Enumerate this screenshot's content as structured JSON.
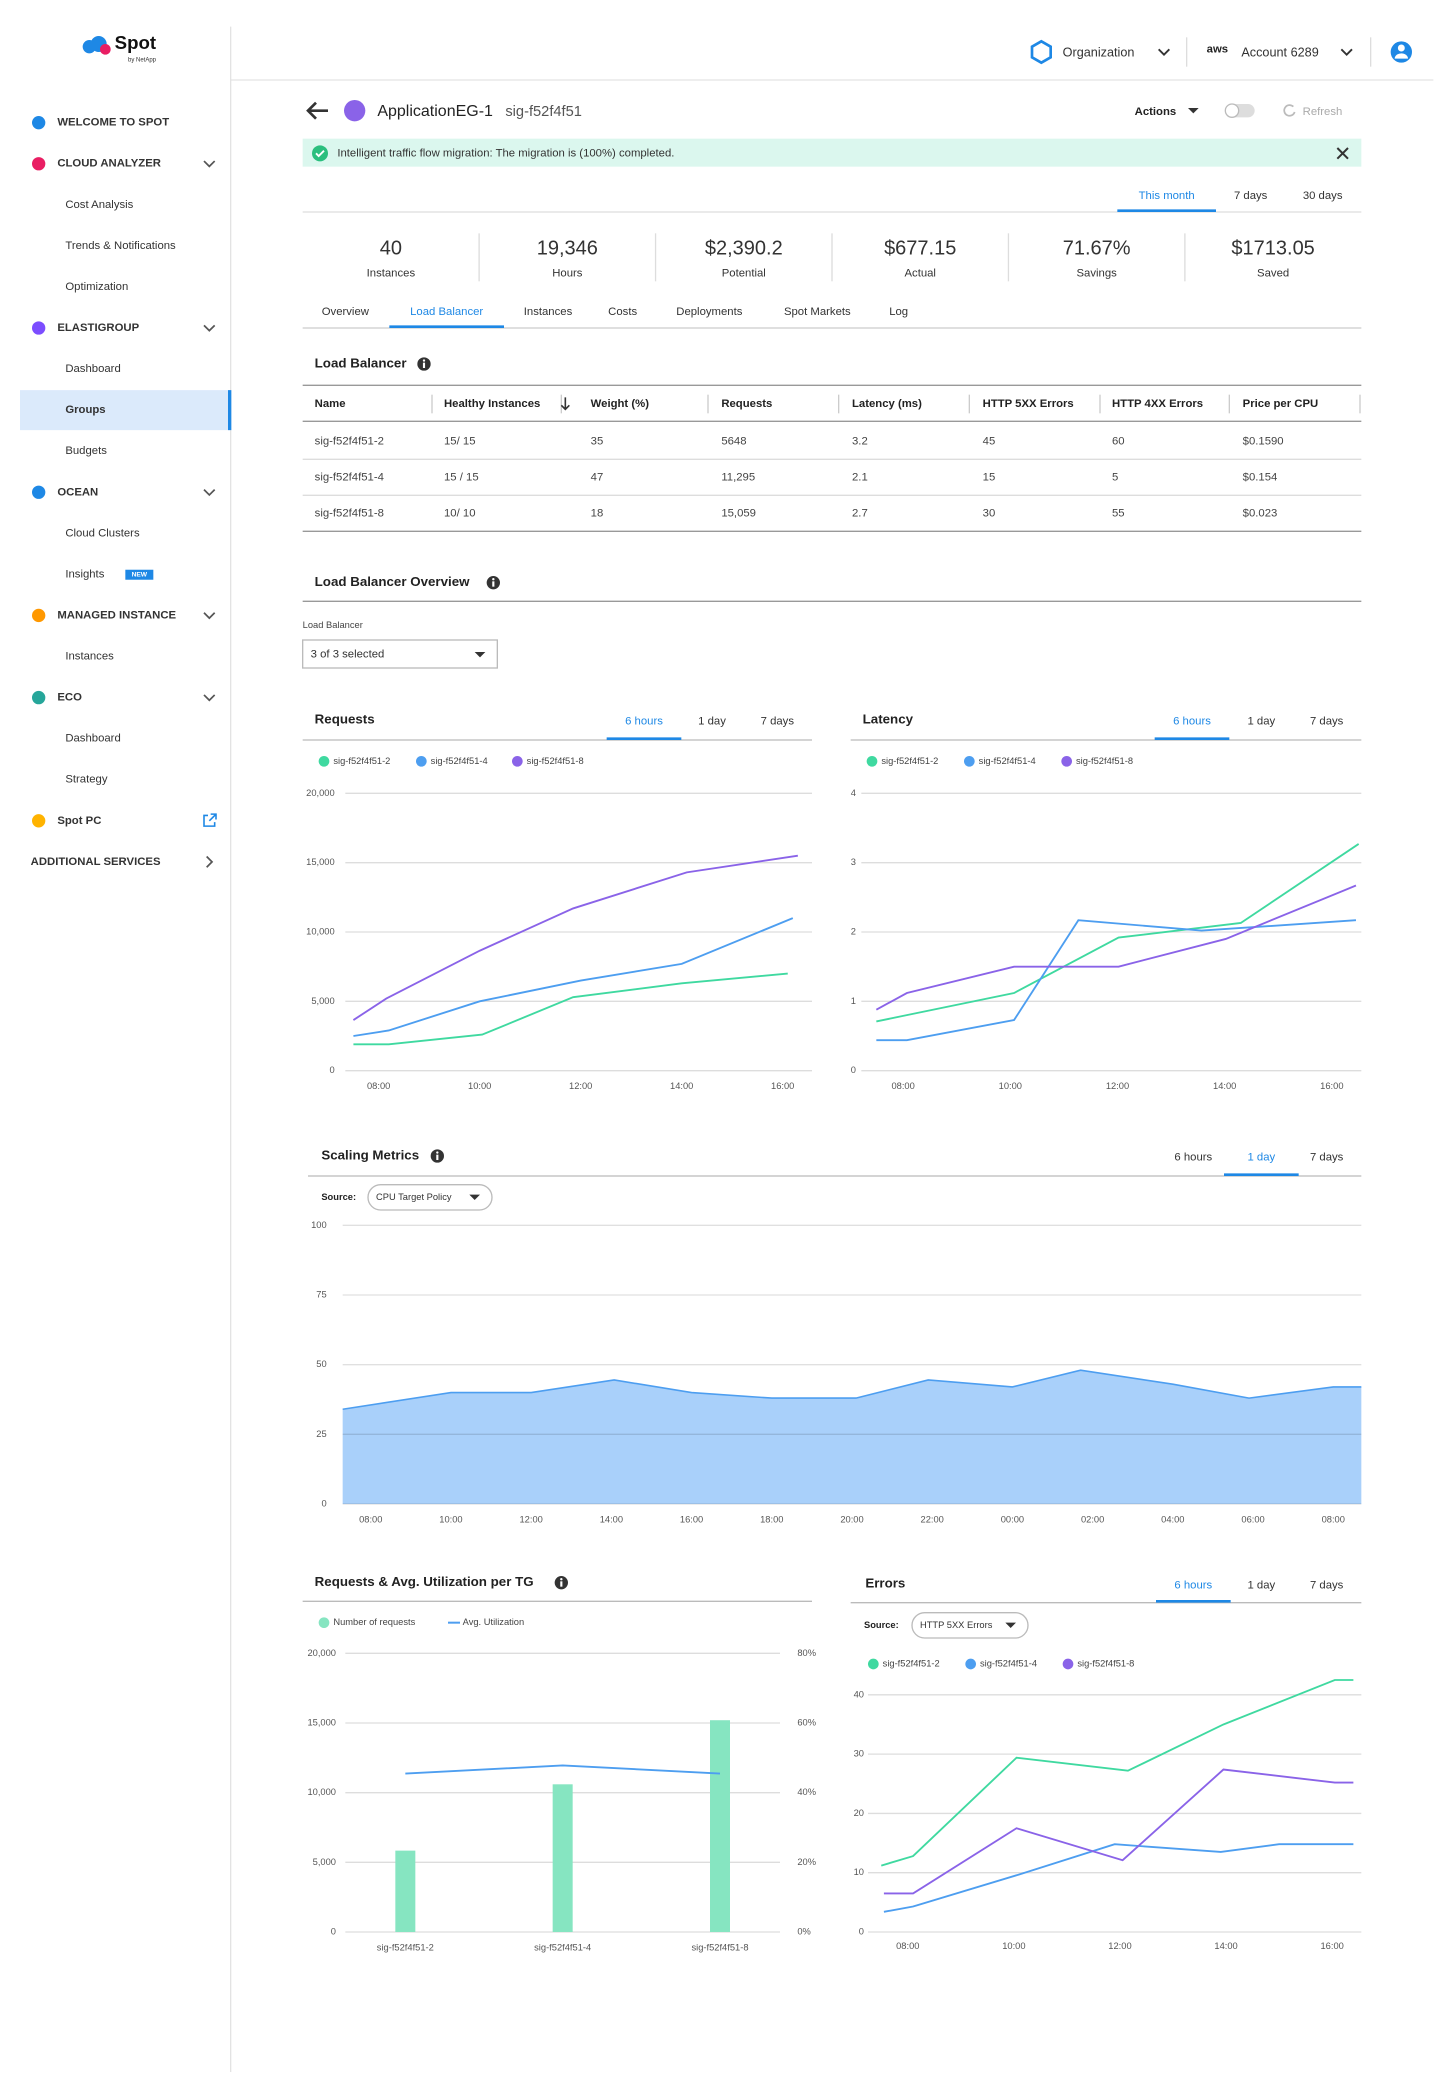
{
  "sidebar": {
    "logo": "Spot",
    "logo_sub": "by NetApp",
    "sections": [
      {
        "label": "WELCOME TO SPOT"
      },
      {
        "label": "CLOUD ANALYZER",
        "items": [
          {
            "label": "Cost Analysis"
          },
          {
            "label": "Trends & Notifications"
          },
          {
            "label": "Optimization"
          }
        ]
      },
      {
        "label": "ELASTIGROUP",
        "items": [
          {
            "label": "Dashboard"
          },
          {
            "label": "Groups",
            "active": true
          },
          {
            "label": "Budgets"
          }
        ]
      },
      {
        "label": "OCEAN",
        "items": [
          {
            "label": "Cloud Clusters"
          },
          {
            "label": "Insights",
            "badge": "NEW"
          }
        ]
      },
      {
        "label": "MANAGED INSTANCE",
        "items": [
          {
            "label": "Instances"
          }
        ]
      },
      {
        "label": "ECO",
        "items": [
          {
            "label": "Dashboard"
          },
          {
            "label": "Strategy"
          }
        ]
      },
      {
        "label": "Spot PC",
        "external": true
      },
      {
        "label": "ADDITIONAL SERVICES",
        "more": true
      }
    ]
  },
  "topbar": {
    "organization": "Organization",
    "aws": "aws",
    "account": "Account 6289"
  },
  "header": {
    "app": "ApplicationEG-1",
    "group_id": "sig-f52f4f51",
    "actions": "Actions",
    "refresh": "Refresh"
  },
  "banner": {
    "message": "Intelligent traffic flow migration: The migration is (100%) completed."
  },
  "periods": {
    "options": [
      "This month",
      "7 days",
      "30 days"
    ],
    "active": 0
  },
  "stats": [
    {
      "value": "40",
      "label": "Instances"
    },
    {
      "value": "19,346",
      "label": "Hours"
    },
    {
      "value": "$2,390.2",
      "label": "Potential"
    },
    {
      "value": "$677.15",
      "label": "Actual"
    },
    {
      "value": "71.67%",
      "label": "Savings"
    },
    {
      "value": "$1713.05",
      "label": "Saved"
    }
  ],
  "tabs": {
    "options": [
      "Overview",
      "Load Balancer",
      "Instances",
      "Costs",
      "Deployments",
      "Spot Markets",
      "Log"
    ],
    "active": 1
  },
  "load_balancer": {
    "title": "Load Balancer",
    "columns": [
      "Name",
      "Healthy Instances",
      "Weight (%)",
      "Requests",
      "Latency (ms)",
      "HTTP 5XX Errors",
      "HTTP 4XX Errors",
      "Price per CPU"
    ],
    "rows": [
      [
        "sig-f52f4f51-2",
        "15/ 15",
        "35",
        "5648",
        "3.2",
        "45",
        "60",
        "$0.1590"
      ],
      [
        "sig-f52f4f51-4",
        "15 / 15",
        "47",
        "11,295",
        "2.1",
        "15",
        "5",
        "$0.154"
      ],
      [
        "sig-f52f4f51-8",
        "10/ 10",
        "18",
        "15,059",
        "2.7",
        "30",
        "55",
        "$0.023"
      ]
    ]
  },
  "overview": {
    "title": "Load Balancer Overview",
    "filter_label": "Load Balancer",
    "filter_value": "3 of 3 selected"
  },
  "chart_data": [
    {
      "type": "line",
      "title": "Requests",
      "tabs": [
        "6 hours",
        "1 day",
        "7 days"
      ],
      "active_tab": 0,
      "xlim": [
        7.34,
        16.58
      ],
      "xticks": [
        {
          "value": 8,
          "label": "08:00"
        },
        {
          "value": 10,
          "label": "10:00"
        },
        {
          "value": 12,
          "label": "12:00"
        },
        {
          "value": 14,
          "label": "14:00"
        },
        {
          "value": 16,
          "label": "16:00"
        }
      ],
      "ylim": [
        0,
        20000
      ],
      "yticks": [
        0,
        {
          "value": 5000,
          "label": "5,000"
        },
        {
          "value": 10000,
          "label": "10,000"
        },
        {
          "value": 15000,
          "label": "15,000"
        },
        {
          "value": 20000,
          "label": "20,000"
        }
      ],
      "grid": true,
      "series": [
        {
          "name": "sig-f52f4f51-2",
          "color": "#3fd9a0",
          "x": [
            7.5,
            8.2,
            10.05,
            11.85,
            14,
            16.1
          ],
          "values": [
            1900,
            1900,
            2600,
            5300,
            6300,
            7000
          ]
        },
        {
          "name": "sig-f52f4f51-4",
          "color": "#4d9ef0",
          "x": [
            7.5,
            8.2,
            10,
            12,
            14,
            16.2
          ],
          "values": [
            2500,
            2900,
            5000,
            6500,
            7700,
            11000
          ]
        },
        {
          "name": "sig-f52f4f51-8",
          "color": "#8a63e8",
          "x": [
            7.5,
            8.15,
            10,
            11.85,
            14.1,
            16.3
          ],
          "values": [
            3650,
            5200,
            8650,
            11700,
            14300,
            15500
          ]
        }
      ]
    },
    {
      "type": "line",
      "title": "Latency",
      "tabs": [
        "6 hours",
        "1 day",
        "7 days"
      ],
      "active_tab": 0,
      "xlim": [
        7.22,
        16.55
      ],
      "xticks": [
        {
          "value": 8,
          "label": "08:00"
        },
        {
          "value": 10,
          "label": "10:00"
        },
        {
          "value": 12,
          "label": "12:00"
        },
        {
          "value": 14,
          "label": "14:00"
        },
        {
          "value": 16,
          "label": "16:00"
        }
      ],
      "ylim": [
        0,
        4
      ],
      "yticks": [
        0,
        1,
        2,
        3,
        4
      ],
      "grid": true,
      "series": [
        {
          "name": "sig-f52f4f51-2",
          "color": "#3fd9a0",
          "x": [
            7.5,
            8,
            10.07,
            12.02,
            14.3,
            16.5
          ],
          "values": [
            0.71,
            0.79,
            1.12,
            1.92,
            2.13,
            3.27
          ]
        },
        {
          "name": "sig-f52f4f51-4",
          "color": "#4d9ef0",
          "x": [
            7.5,
            8.07,
            10.07,
            11.27,
            13.57,
            16.45
          ],
          "values": [
            0.44,
            0.44,
            0.73,
            2.17,
            2.02,
            2.17
          ]
        },
        {
          "name": "sig-f52f4f51-8",
          "color": "#8a63e8",
          "x": [
            7.5,
            8.07,
            10.07,
            12.02,
            14.02,
            16.45
          ],
          "values": [
            0.88,
            1.12,
            1.5,
            1.5,
            1.9,
            2.67
          ]
        }
      ]
    },
    {
      "type": "area",
      "title": "Scaling Metrics",
      "tabs": [
        "6 hours",
        "1 day",
        "7 days"
      ],
      "active_tab": 1,
      "source_label": "Source:",
      "source": "CPU Target Policy",
      "color": "#4d9ef0",
      "fill": "#a9d0fa",
      "xlim": [
        -0.7,
        24.7
      ],
      "xticks": [
        {
          "value": 0,
          "label": "08:00"
        },
        {
          "value": 2,
          "label": "10:00"
        },
        {
          "value": 4,
          "label": "12:00"
        },
        {
          "value": 6,
          "label": "14:00"
        },
        {
          "value": 8,
          "label": "16:00"
        },
        {
          "value": 10,
          "label": "18:00"
        },
        {
          "value": 12,
          "label": "20:00"
        },
        {
          "value": 14,
          "label": "22:00"
        },
        {
          "value": 16,
          "label": "00:00"
        },
        {
          "value": 18,
          "label": "02:00"
        },
        {
          "value": 20,
          "label": "04:00"
        },
        {
          "value": 22,
          "label": "06:00"
        },
        {
          "value": 24,
          "label": "08:00"
        }
      ],
      "ylim": [
        0,
        100
      ],
      "yticks": [
        0,
        25,
        50,
        75,
        100
      ],
      "grid": true,
      "x": [
        -0.7,
        2,
        4,
        6.07,
        8,
        10,
        12.1,
        13.9,
        16,
        17.7,
        20,
        21.9,
        24,
        24.7
      ],
      "values": [
        34,
        40,
        40,
        44.5,
        40,
        38,
        38,
        44.5,
        42,
        48,
        43,
        38,
        42,
        42
      ]
    },
    {
      "type": "bar",
      "title": "Requests & Avg. Utilization per TG",
      "categories": [
        "sig-f52f4f51-2",
        "sig-f52f4f51-4",
        "sig-f52f4f51-8"
      ],
      "ylim": [
        0,
        20000
      ],
      "yticks": [
        0,
        {
          "value": 5000,
          "label": "5,000"
        },
        {
          "value": 10000,
          "label": "10,000"
        },
        {
          "value": 15000,
          "label": "15,000"
        },
        {
          "value": 20000,
          "label": "20,000"
        }
      ],
      "y2lim": [
        0,
        80
      ],
      "y2ticks": [
        {
          "value": 0,
          "label": "0%"
        },
        {
          "value": 20,
          "label": "20%"
        },
        {
          "value": 40,
          "label": "40%"
        },
        {
          "value": 60,
          "label": "60%"
        },
        {
          "value": 80,
          "label": "80%"
        }
      ],
      "grid": true,
      "series": [
        {
          "name": "Number of requests",
          "type": "bar",
          "color": "#86e5c1",
          "values": [
            5840,
            10600,
            15200
          ]
        },
        {
          "name": "Avg. Utilization",
          "type": "line",
          "axis": "y2",
          "color": "#4d9ef0",
          "values": [
            45.5,
            47.8,
            45.5
          ]
        }
      ]
    },
    {
      "type": "line",
      "title": "Errors",
      "tabs": [
        "6 hours",
        "1 day",
        "7 days"
      ],
      "active_tab": 0,
      "source_label": "Source:",
      "source": "HTTP 5XX Errors",
      "xlim": [
        7.25,
        16.55
      ],
      "xticks": [
        {
          "value": 8,
          "label": "08:00"
        },
        {
          "value": 10,
          "label": "10:00"
        },
        {
          "value": 12,
          "label": "12:00"
        },
        {
          "value": 14,
          "label": "14:00"
        },
        {
          "value": 16,
          "label": "16:00"
        }
      ],
      "ylim": [
        0,
        42.5
      ],
      "yticks": [
        0,
        10,
        20,
        30,
        40
      ],
      "grid": true,
      "series": [
        {
          "name": "sig-f52f4f51-2",
          "color": "#3fd9a0",
          "x": [
            7.5,
            8.1,
            10.05,
            12.15,
            13.95,
            16.05,
            16.4
          ],
          "values": [
            11.2,
            12.8,
            29.4,
            27.2,
            35,
            42.5,
            42.5
          ]
        },
        {
          "name": "sig-f52f4f51-4",
          "color": "#4d9ef0",
          "x": [
            7.55,
            8.1,
            10.1,
            11.9,
            13.9,
            15.0,
            16.4
          ],
          "values": [
            3.4,
            4.3,
            9.7,
            14.8,
            13.5,
            14.8,
            14.8
          ]
        },
        {
          "name": "sig-f52f4f51-8",
          "color": "#8a63e8",
          "x": [
            7.55,
            8.1,
            10.05,
            12.05,
            13.95,
            16.05,
            16.4
          ],
          "values": [
            6.5,
            6.5,
            17.5,
            12.1,
            27.4,
            25.2,
            25.2
          ]
        }
      ]
    }
  ]
}
